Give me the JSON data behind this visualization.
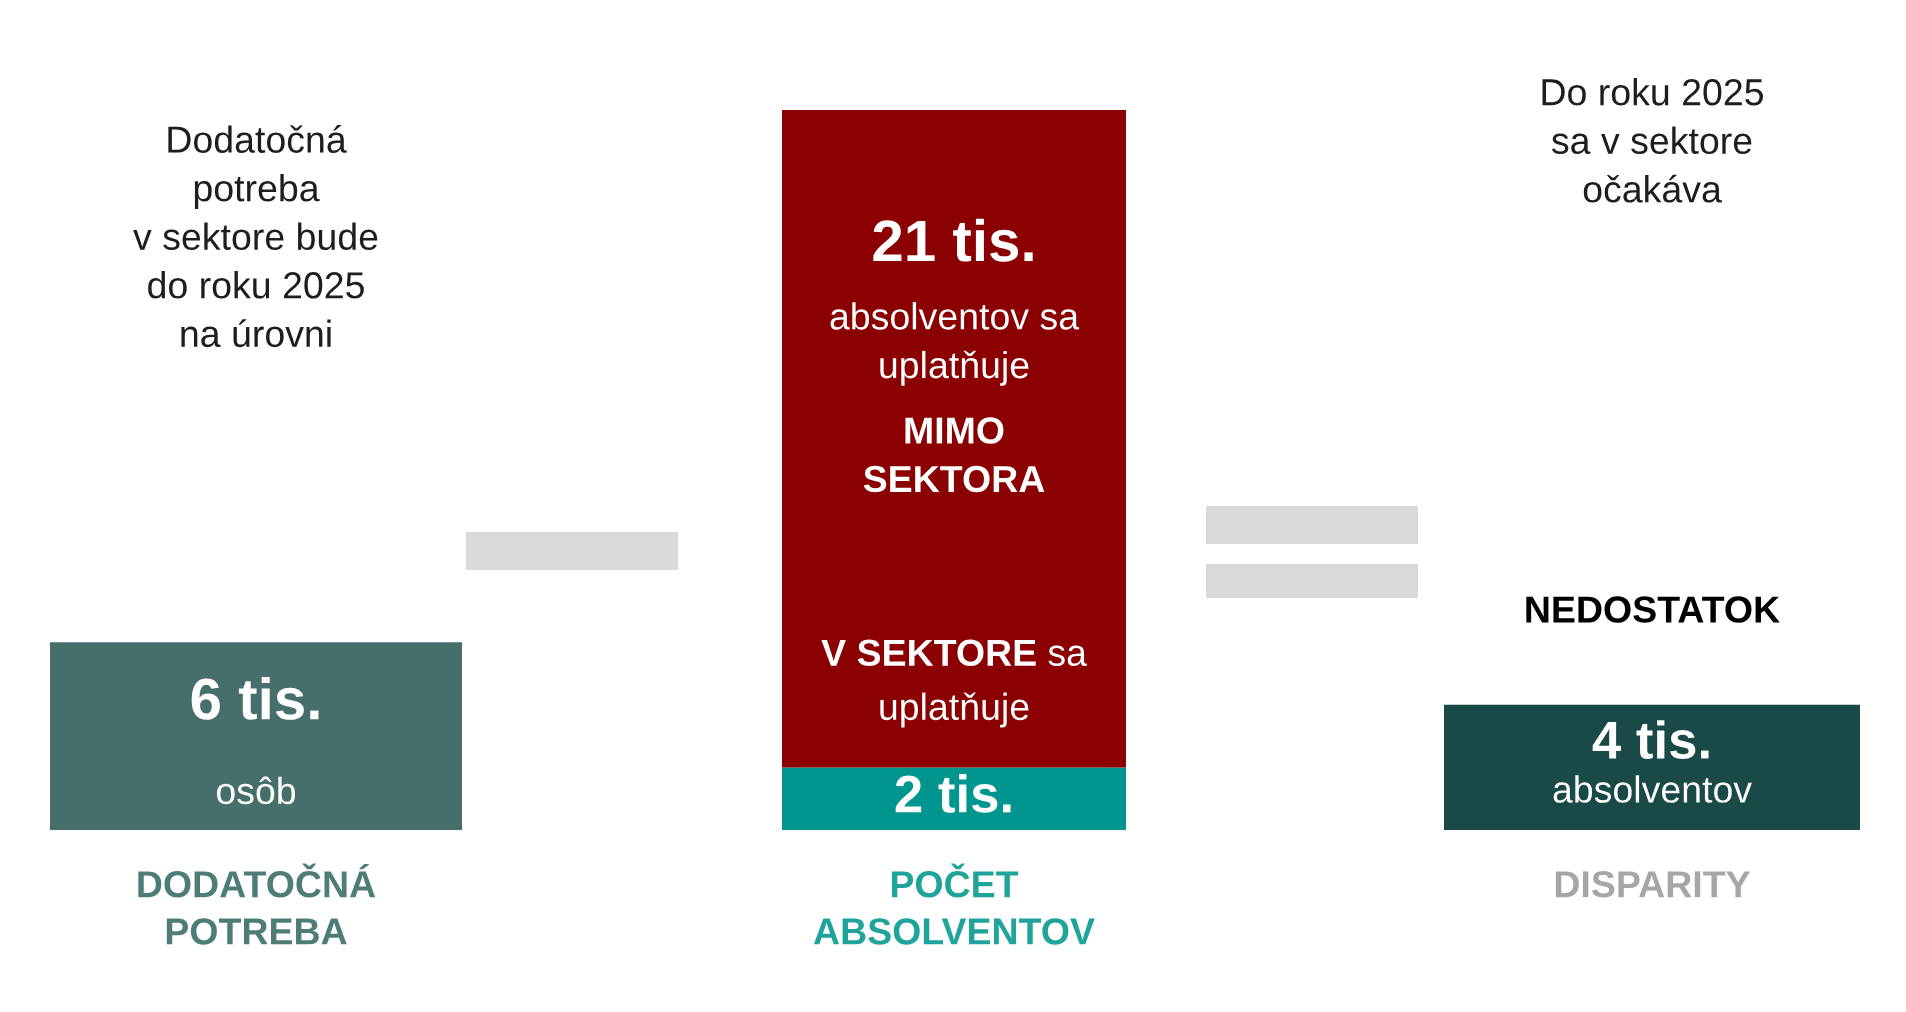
{
  "chart_data": {
    "type": "bar",
    "stacked": true,
    "categories": [
      "DODATOČNÁ\nPOTREBA",
      "POČET\nABSOLVENTOV",
      "DISPARITY"
    ],
    "series": [
      {
        "colors": [
          "#466f6c",
          "#00968f",
          "#1a4a48"
        ],
        "values": [
          6,
          2,
          4
        ],
        "value_labels": [
          "6 tis.",
          "2 tis.",
          "4 tis."
        ]
      },
      {
        "color": "#8b0000",
        "values": [
          null,
          21,
          null
        ],
        "value_labels": [
          null,
          "21 tis.",
          null
        ]
      }
    ],
    "annotations": [
      "Dodatočná\npotreba\nv sektore bude\ndo roku 2025\nna úrovni",
      "Do roku 2025\nsa v sektore\nočakáva",
      "osôb",
      "absolventov sa\nuplatňuje",
      "MIMO\nSEKTORA",
      "V SEKTORE",
      "sa",
      "uplatňuje",
      "NEDOSTATOK",
      "absolventov"
    ]
  }
}
